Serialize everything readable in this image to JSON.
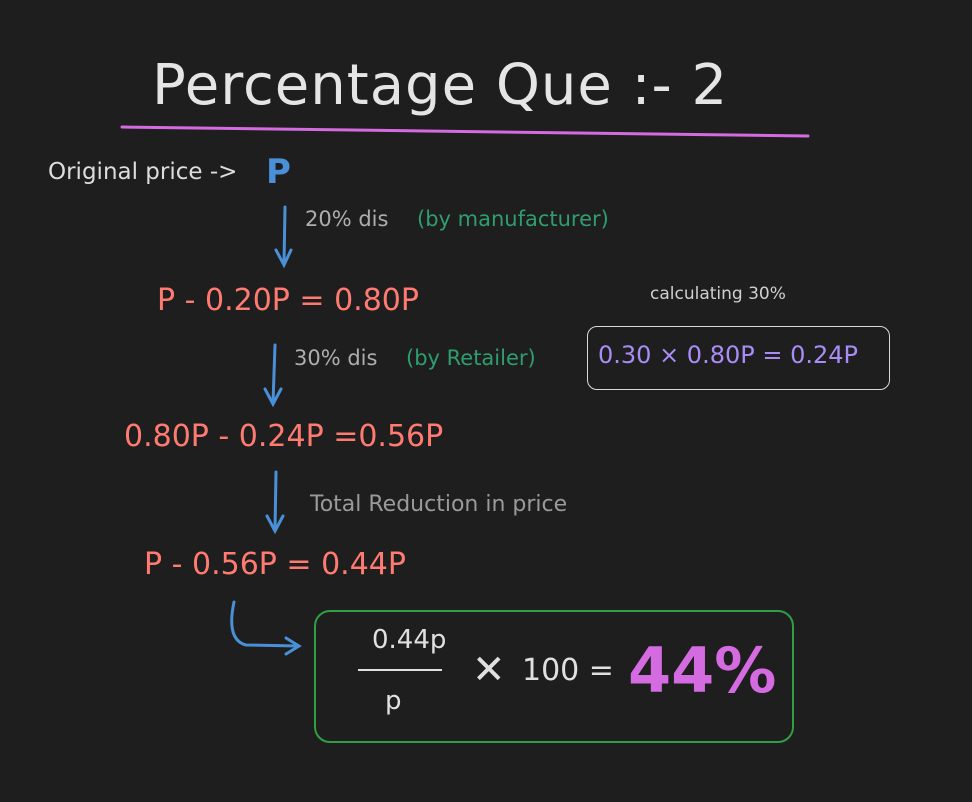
{
  "title": "Percentage Que :- 2",
  "original": {
    "label": "Original price ->",
    "variable": "P"
  },
  "steps": [
    {
      "label": "20% dis",
      "note": "(by manufacturer)"
    },
    {
      "label": "30% dis",
      "note": "(by Retailer)"
    }
  ],
  "equations": [
    "P - 0.20P = 0.80P",
    "0.80P - 0.24P =0.56P",
    "P - 0.56P = 0.44P"
  ],
  "side_calc": {
    "label": "calculating 30%",
    "expression": "0.30 × 0.80P = 0.24P"
  },
  "total_label": "Total Reduction in price",
  "result": {
    "numerator": "0.44p",
    "denominator": "p",
    "multiplier_text": "100 =",
    "answer": "44%"
  },
  "colors": {
    "background": "#1e1e1e",
    "title_underline": "#d46be0",
    "arrow": "#4a90d9",
    "equation": "#ff7b72",
    "note": "#2f9e6e",
    "side_calc": "#a98cf5",
    "result_border": "#2f9e44",
    "answer": "#d46be0"
  }
}
